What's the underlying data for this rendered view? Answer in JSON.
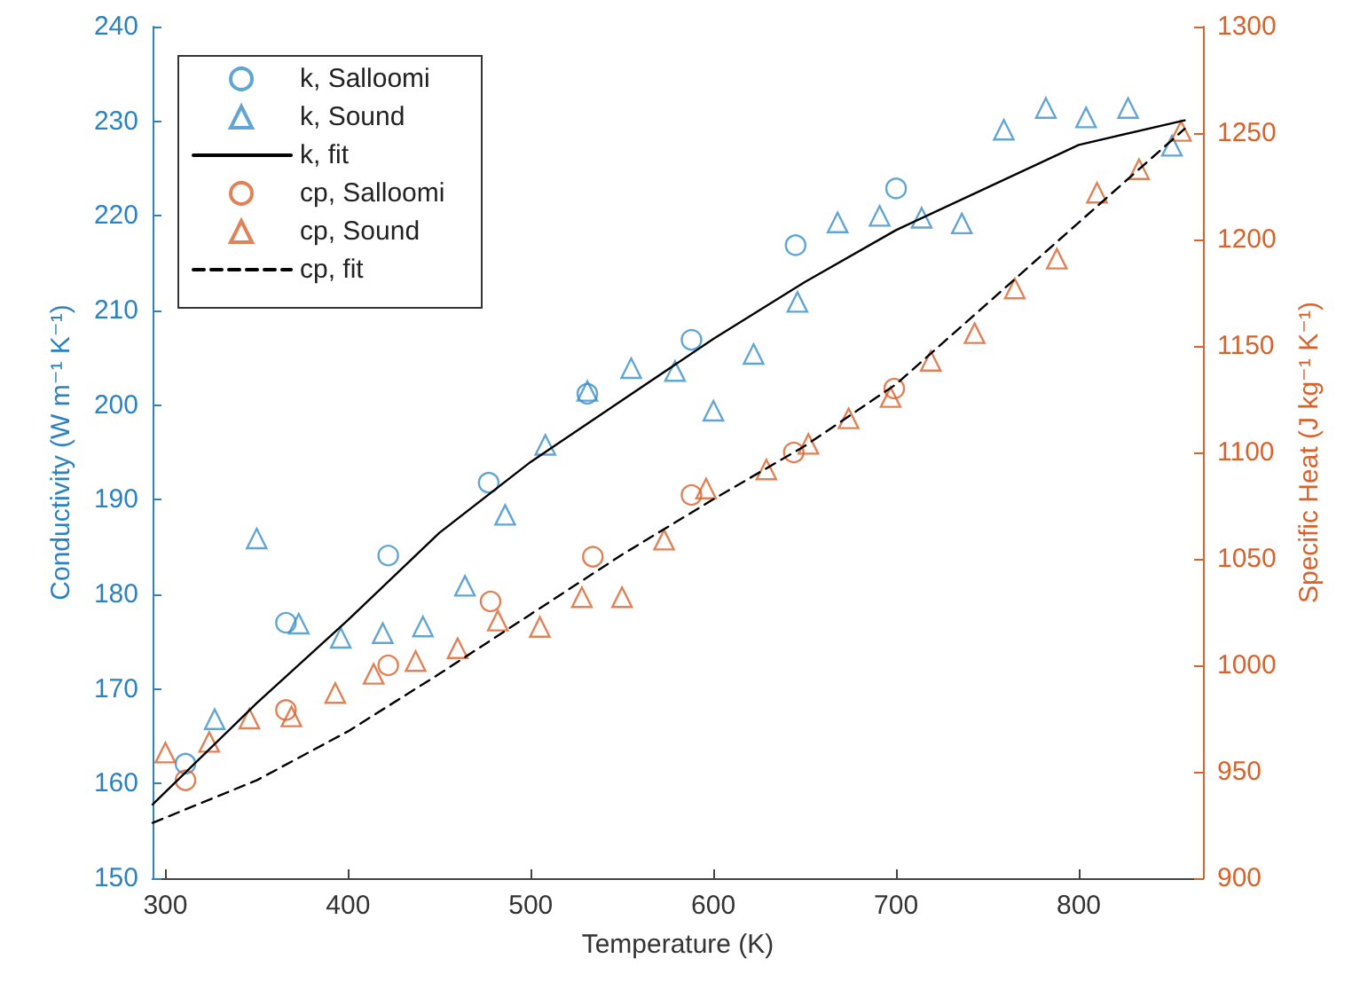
{
  "chart_data": {
    "type": "scatter",
    "xlabel": "Temperature (K)",
    "ylabel": "Conductivity (W m⁻¹ K⁻¹)",
    "y2label": "Specific Heat (J kg⁻¹ K⁻¹)",
    "xlim": [
      293,
      868
    ],
    "xticks": [
      300,
      400,
      500,
      600,
      700,
      800
    ],
    "ylim": [
      150,
      240
    ],
    "yticks": [
      150,
      160,
      170,
      180,
      190,
      200,
      210,
      220,
      230,
      240
    ],
    "y2lim": [
      900,
      1300
    ],
    "y2ticks": [
      900,
      950,
      1000,
      1050,
      1100,
      1150,
      1200,
      1250,
      1300
    ],
    "legend": "top left",
    "grid": false,
    "series": [
      {
        "name": "k, Salloomi",
        "marker": "circle",
        "color": "#3a8fc9",
        "x": [
          311,
          366,
          422,
          477,
          531,
          588,
          645,
          700
        ],
        "values": [
          162.1,
          177,
          184.1,
          191.8,
          201.2,
          206.9,
          216.9,
          222.9
        ]
      },
      {
        "name": "k, Sound",
        "marker": "triangle",
        "color": "#3a8fc9",
        "x": [
          327,
          350,
          373,
          396,
          419,
          441,
          464,
          486,
          508,
          531,
          555,
          579,
          600,
          622,
          646,
          668,
          691,
          714,
          736,
          759,
          782,
          804,
          827,
          851
        ],
        "values": [
          166.8,
          185.9,
          176.9,
          175.4,
          175.9,
          176.6,
          180.9,
          188.4,
          195.8,
          201.5,
          203.9,
          203.6,
          199.4,
          205.4,
          210.9,
          219.3,
          220,
          219.8,
          219.2,
          229.1,
          231.4,
          230.4,
          231.4,
          227.4
        ]
      },
      {
        "name": "k, fit",
        "type": "line",
        "marker": "none",
        "line_style": "solid",
        "color": "#000000",
        "x": [
          293,
          350,
          400,
          450,
          500,
          550,
          600,
          650,
          700,
          750,
          800,
          858
        ],
        "values": [
          157.8,
          168.5,
          177.3,
          186.5,
          194,
          200.5,
          207,
          213,
          218.5,
          223,
          227.5,
          230.1
        ]
      },
      {
        "name": "cp, Salloomi",
        "marker": "circle",
        "axis": "y2",
        "color": "#d9622b",
        "x": [
          311,
          366,
          422,
          478,
          534,
          588,
          644,
          699
        ],
        "values": [
          946,
          979,
          1000,
          1030,
          1051,
          1080,
          1100,
          1130
        ]
      },
      {
        "name": "cp, Sound",
        "marker": "triangle",
        "axis": "y2",
        "color": "#d9622b",
        "x": [
          300,
          324,
          346,
          369,
          393,
          414,
          437,
          460,
          482,
          505,
          528,
          550,
          573,
          596,
          629,
          652,
          674,
          697,
          719,
          743,
          765,
          788,
          810,
          833,
          856
        ],
        "values": [
          959,
          964,
          975,
          976,
          987,
          996,
          1002,
          1008,
          1021,
          1018,
          1032,
          1032,
          1059,
          1083,
          1092,
          1104,
          1116,
          1126,
          1143,
          1156,
          1177,
          1191,
          1222,
          1233,
          1251
        ]
      },
      {
        "name": "cp, fit",
        "type": "line",
        "marker": "none",
        "line_style": "dashed",
        "axis": "y2",
        "color": "#000000",
        "x": [
          293,
          350,
          400,
          450,
          500,
          550,
          600,
          650,
          700,
          750,
          800,
          858
        ],
        "values": [
          926,
          946,
          969,
          996,
          1024,
          1052,
          1078,
          1103,
          1132,
          1170,
          1208,
          1252
        ]
      }
    ]
  }
}
